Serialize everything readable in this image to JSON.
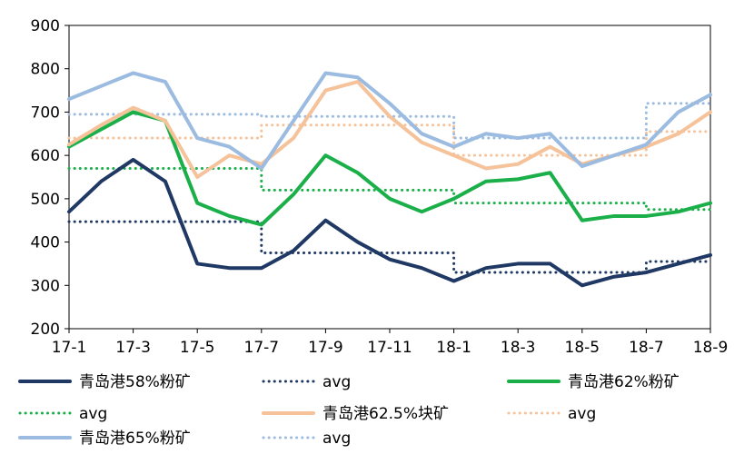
{
  "chart_data": {
    "type": "line",
    "title": "",
    "xlabel": "",
    "ylabel": "",
    "ylim": [
      200,
      900
    ],
    "yticks": [
      200,
      300,
      400,
      500,
      600,
      700,
      800,
      900
    ],
    "xticks": [
      "17-1",
      "17-3",
      "17-5",
      "17-7",
      "17-9",
      "17-11",
      "18-1",
      "18-3",
      "18-5",
      "18-7",
      "18-9"
    ],
    "x": [
      "17-1",
      "17-2",
      "17-3",
      "17-4",
      "17-5",
      "17-6",
      "17-7",
      "17-8",
      "17-9",
      "17-10",
      "17-11",
      "17-12",
      "18-1",
      "18-2",
      "18-3",
      "18-4",
      "18-5",
      "18-6",
      "18-7",
      "18-8",
      "18-9"
    ],
    "grid": false,
    "legend_position": "bottom",
    "series": [
      {
        "name": "青岛港58%粉矿",
        "color": "#1f3864",
        "style": "solid",
        "values": [
          470,
          540,
          590,
          540,
          350,
          340,
          340,
          380,
          450,
          400,
          360,
          340,
          310,
          340,
          350,
          350,
          300,
          320,
          330,
          350,
          370
        ]
      },
      {
        "name": "avg",
        "color": "#1f3864",
        "style": "dotted",
        "values": [
          447,
          447,
          447,
          447,
          447,
          447,
          375,
          375,
          375,
          375,
          375,
          375,
          330,
          330,
          330,
          330,
          330,
          330,
          355,
          355,
          355
        ]
      },
      {
        "name": "青岛港62%粉矿",
        "color": "#1aaf48",
        "style": "solid",
        "values": [
          620,
          660,
          700,
          680,
          490,
          460,
          440,
          510,
          600,
          560,
          500,
          470,
          500,
          540,
          545,
          560,
          450,
          460,
          460,
          470,
          490
        ]
      },
      {
        "name": "avg",
        "color": "#1aaf48",
        "style": "dotted",
        "values": [
          570,
          570,
          570,
          570,
          570,
          570,
          520,
          520,
          520,
          520,
          520,
          520,
          490,
          490,
          490,
          490,
          490,
          490,
          475,
          475,
          475
        ]
      },
      {
        "name": "青岛港62.5%块矿",
        "color": "#f5c29a",
        "style": "solid",
        "values": [
          625,
          670,
          710,
          680,
          550,
          600,
          580,
          640,
          750,
          770,
          690,
          630,
          600,
          570,
          580,
          620,
          580,
          600,
          620,
          650,
          700
        ]
      },
      {
        "name": "avg",
        "color": "#f5c29a",
        "style": "dotted",
        "values": [
          640,
          640,
          640,
          640,
          640,
          640,
          670,
          670,
          670,
          670,
          670,
          670,
          600,
          600,
          600,
          600,
          600,
          600,
          655,
          655,
          655
        ]
      },
      {
        "name": "青岛港65%粉矿",
        "color": "#9bbbe0",
        "style": "solid",
        "values": [
          730,
          760,
          790,
          770,
          640,
          620,
          570,
          680,
          790,
          780,
          720,
          650,
          620,
          650,
          640,
          650,
          575,
          600,
          625,
          700,
          740
        ]
      },
      {
        "name": "avg",
        "color": "#9bbbe0",
        "style": "dotted",
        "values": [
          695,
          695,
          695,
          695,
          695,
          695,
          690,
          690,
          690,
          690,
          690,
          690,
          640,
          640,
          640,
          640,
          640,
          640,
          720,
          720,
          720
        ]
      }
    ]
  }
}
